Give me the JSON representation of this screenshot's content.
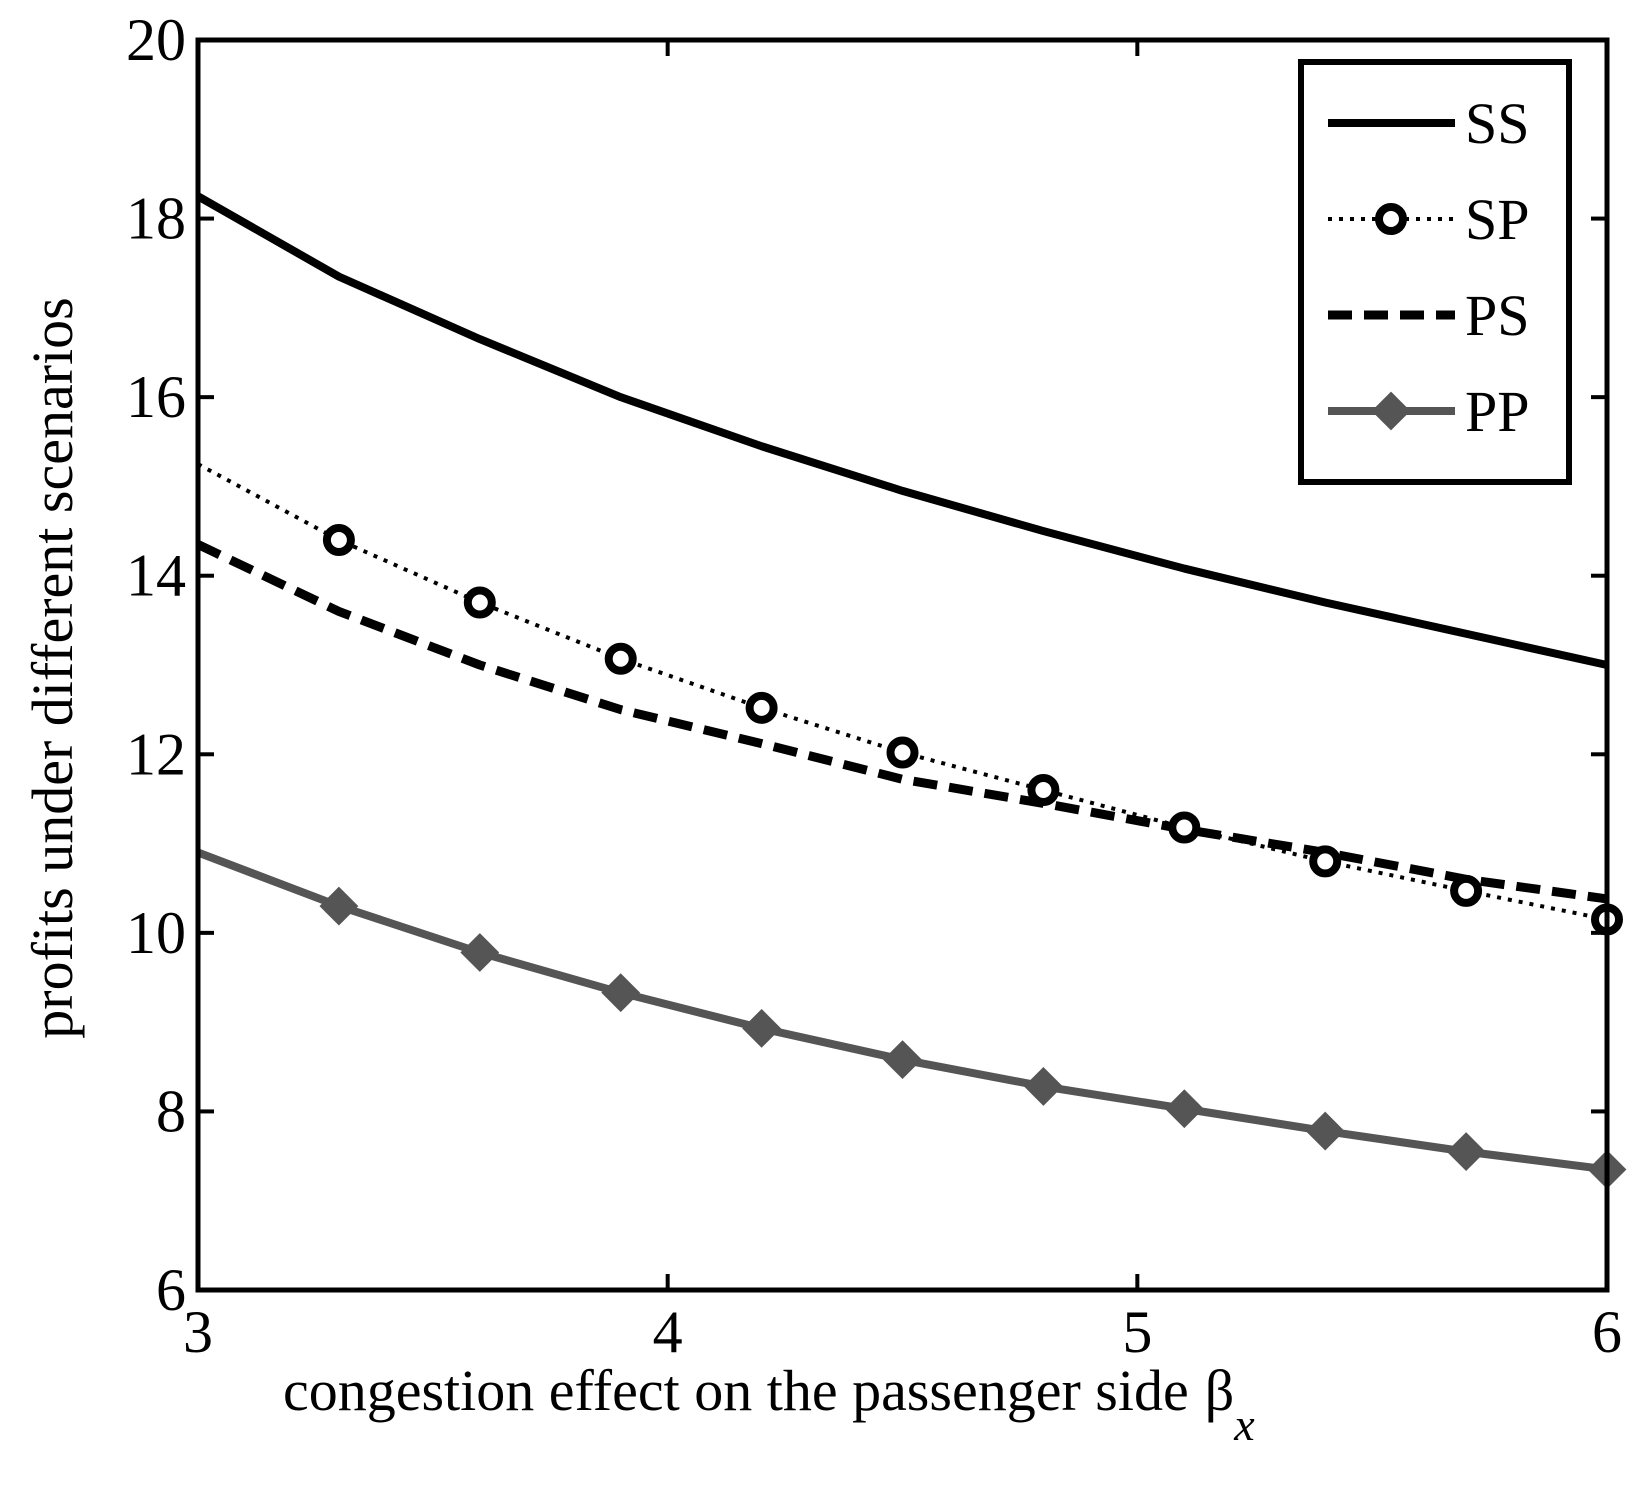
{
  "chart_data": {
    "type": "line",
    "title": "",
    "xlabel": "congestion effect on the passenger side",
    "xlabel_symbol": "β",
    "xlabel_subscript": "x",
    "ylabel": "profits under different scenarios",
    "xlim": [
      3,
      6
    ],
    "ylim": [
      6,
      20
    ],
    "xticks": [
      3,
      4,
      5,
      6
    ],
    "yticks": [
      6,
      8,
      10,
      12,
      14,
      16,
      18,
      20
    ],
    "grid": false,
    "legend_position": "top-right",
    "x": [
      3.0,
      3.3,
      3.6,
      3.9,
      4.2,
      4.5,
      4.8,
      5.1,
      5.4,
      5.7,
      6.0
    ],
    "series": [
      {
        "name": "SS",
        "style": "solid",
        "marker": "none",
        "color": "#000000",
        "values": [
          18.25,
          17.35,
          16.65,
          16.0,
          15.45,
          14.95,
          14.5,
          14.08,
          13.7,
          13.35,
          13.0
        ]
      },
      {
        "name": "SP",
        "style": "dotted",
        "marker": "circle",
        "color": "#000000",
        "values": [
          15.25,
          14.4,
          13.7,
          13.07,
          12.52,
          12.02,
          11.6,
          11.18,
          10.8,
          10.47,
          10.15
        ]
      },
      {
        "name": "PS",
        "style": "dashed",
        "marker": "none",
        "color": "#000000",
        "values": [
          14.35,
          13.6,
          13.0,
          12.5,
          12.12,
          11.72,
          11.45,
          11.16,
          10.9,
          10.6,
          10.38
        ]
      },
      {
        "name": "PP",
        "style": "solid",
        "marker": "diamond",
        "color": "#555555",
        "values": [
          10.9,
          10.3,
          9.78,
          9.33,
          8.93,
          8.58,
          8.28,
          8.03,
          7.78,
          7.55,
          7.35
        ]
      }
    ]
  }
}
